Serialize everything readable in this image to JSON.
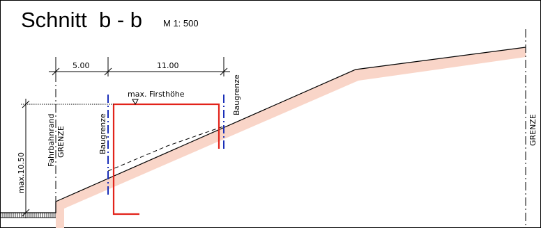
{
  "title": "Schnitt  b - b",
  "scale": "M 1: 500",
  "dimensions": {
    "width_left": "5.00",
    "width_right": "11.00",
    "height": "max.10.50"
  },
  "labels": {
    "ridge_height": "max. Firsthöhe",
    "roadside": "Fahrbahnrand",
    "border_left": "GRENZE",
    "border_right": "GRENZE",
    "baugrenze_left": "Baugrenze",
    "baugrenze_right": "Baugrenze"
  },
  "colors": {
    "line": "#000000",
    "building": "#e2231a",
    "baugrenze": "#1a2fb8",
    "terrain_fill": "#f9d5c8"
  }
}
